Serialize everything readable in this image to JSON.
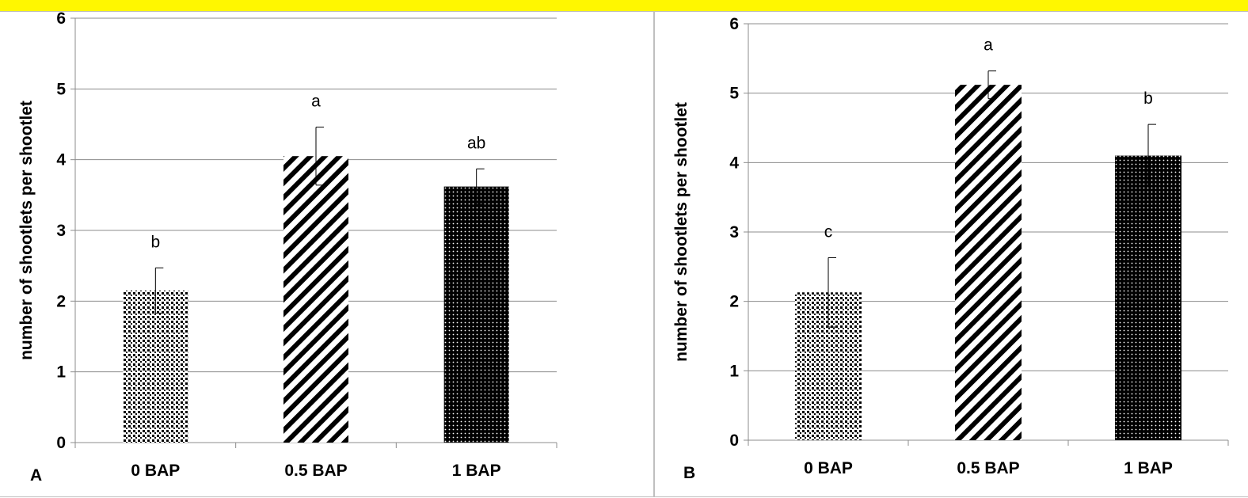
{
  "chart_data": [
    {
      "type": "bar",
      "panel_label": "A",
      "categories": [
        "0 BAP",
        "0.5 BAP",
        "1 BAP"
      ],
      "values": [
        2.15,
        4.05,
        3.62
      ],
      "error": [
        0.32,
        0.41,
        0.25
      ],
      "letters": [
        "b",
        "a",
        "ab"
      ],
      "patterns": [
        "checker",
        "diagonal",
        "dots"
      ],
      "ylabel": "number of shootlets per shootlet",
      "ylim": [
        0,
        6
      ],
      "yticks": [
        "0",
        "1",
        "2",
        "3",
        "4",
        "5",
        "6"
      ],
      "grid": true
    },
    {
      "type": "bar",
      "panel_label": "B",
      "categories": [
        "0 BAP",
        "0.5 BAP",
        "1 BAP"
      ],
      "values": [
        2.13,
        5.12,
        4.1
      ],
      "error": [
        0.5,
        0.2,
        0.45
      ],
      "letters": [
        "c",
        "a",
        "b"
      ],
      "patterns": [
        "checker",
        "diagonal",
        "dots"
      ],
      "ylabel": "number of shootlets per shootlet",
      "ylim": [
        0,
        6
      ],
      "yticks": [
        "0",
        "1",
        "2",
        "3",
        "4",
        "5",
        "6"
      ],
      "grid": true
    }
  ]
}
